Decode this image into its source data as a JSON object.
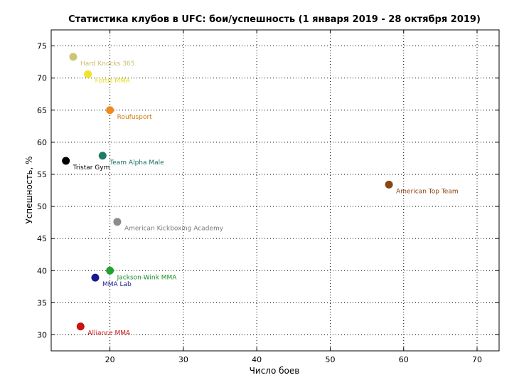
{
  "chart_data": {
    "type": "scatter",
    "title": "Статистика клубов в UFC: бои/успешность (1 января 2019 - 28 октября 2019)",
    "xlabel": "Число боев",
    "ylabel": "Успешность, %",
    "xlim": [
      12,
      73
    ],
    "ylim": [
      27.5,
      77.5
    ],
    "xticks": [
      20,
      30,
      40,
      50,
      60,
      70
    ],
    "yticks": [
      30,
      35,
      40,
      45,
      50,
      55,
      60,
      65,
      70,
      75
    ],
    "grid": true,
    "points": [
      {
        "label": "Hard Knocks 365",
        "x": 15,
        "y": 73.3,
        "color": "#cdc574",
        "label_color": "#c8bd6a"
      },
      {
        "label": "Fortis MMA",
        "x": 17,
        "y": 70.6,
        "color": "#f0e42a",
        "label_color": "#e8de10"
      },
      {
        "label": "Roufusport",
        "x": 20,
        "y": 65.0,
        "color": "#f08a1c",
        "label_color": "#d07c10"
      },
      {
        "label": "Team Alpha Male",
        "x": 19,
        "y": 57.9,
        "color": "#1f7a66",
        "label_color": "#1a6e60"
      },
      {
        "label": "Tristar Gym",
        "x": 14,
        "y": 57.1,
        "color": "#000000",
        "label_color": "#000000"
      },
      {
        "label": "American Top Team",
        "x": 58,
        "y": 53.4,
        "color": "#8b4513",
        "label_color": "#8b4010"
      },
      {
        "label": "American Kickboxing Academy",
        "x": 21,
        "y": 47.6,
        "color": "#8c8c8c",
        "label_color": "#7a7a7a"
      },
      {
        "label": "Jackson-Wink MMA",
        "x": 20,
        "y": 40.0,
        "color": "#22a32e",
        "label_color": "#1a8c26"
      },
      {
        "label": "MMA Lab",
        "x": 18,
        "y": 38.9,
        "color": "#1a1a8c",
        "label_color": "#1a1a8c"
      },
      {
        "label": "Alliance MMA",
        "x": 16,
        "y": 31.3,
        "color": "#cc1111",
        "label_color": "#cc1111"
      }
    ]
  }
}
